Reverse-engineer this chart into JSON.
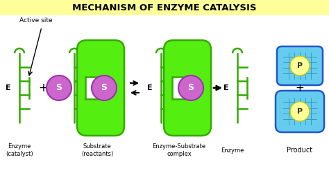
{
  "title": "MECHANISM OF ENZYME CATALYSIS",
  "title_bg": "#ffff99",
  "title_color": "#000000",
  "title_fontsize": 9.5,
  "enzyme_color": "#55ee11",
  "enzyme_outline": "#33aa00",
  "substrate_color": "#cc66cc",
  "substrate_outline": "#9933aa",
  "product_color": "#ffff99",
  "product_bg": "#66ccee",
  "product_outline": "#2255cc",
  "product_grid": "#3399cc",
  "bg_color": "#ffffff",
  "e_label": "E",
  "s_label": "S",
  "p_label": "P",
  "lw_enzyme": 1.8,
  "lw_product": 1.8
}
